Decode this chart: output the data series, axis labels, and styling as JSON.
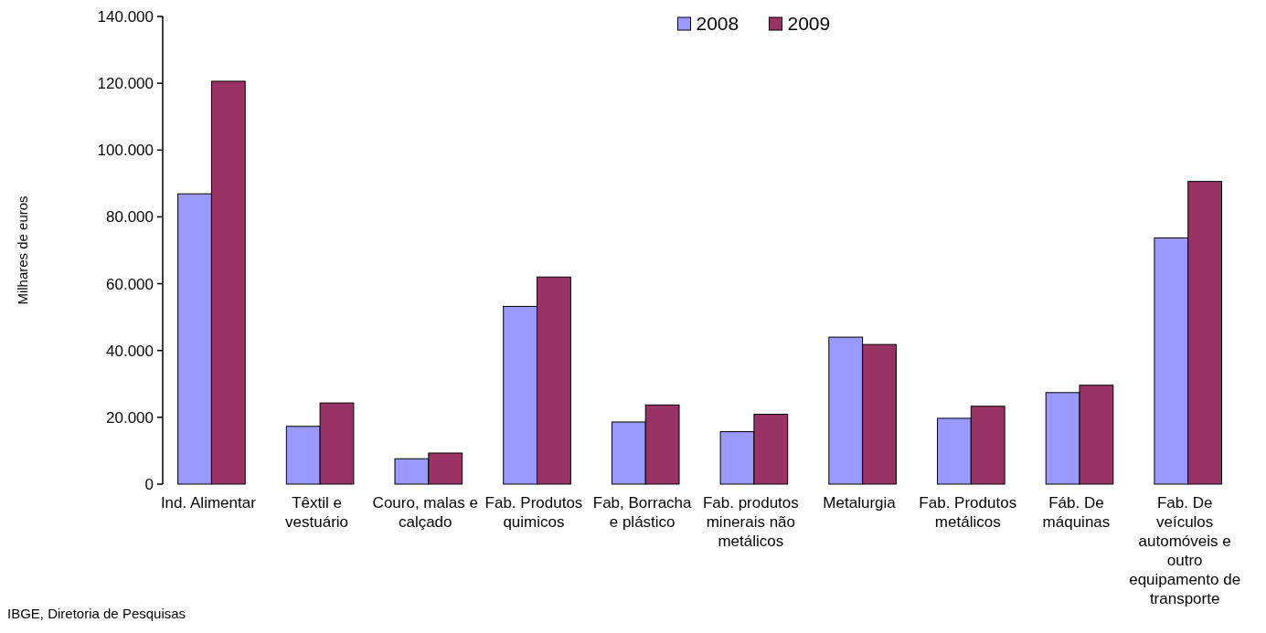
{
  "chart_data": {
    "type": "bar",
    "categories": [
      "Ind. Alimentar",
      "Têxtil e vestuário",
      "Couro, malas e calçado",
      "Fab. Produtos quimicos",
      "Fab, Borracha e plástico",
      "Fab. produtos minerais não metálicos",
      "Metalurgia",
      "Fab. Produtos metálicos",
      "Fáb. De máquinas",
      "Fab. De veículos automóveis e outro equipamento de transporte"
    ],
    "series": [
      {
        "name": "2008",
        "color": "#9999ff",
        "values": [
          86900,
          17300,
          7600,
          53200,
          18600,
          15700,
          44000,
          19700,
          27400,
          73700
        ]
      },
      {
        "name": "2009",
        "color": "#993366",
        "values": [
          120600,
          24300,
          9300,
          62000,
          23700,
          20900,
          41800,
          23300,
          29600,
          90600
        ]
      }
    ],
    "ylabel": "Milhares de euros",
    "ylim": [
      0,
      140000
    ],
    "yticks": [
      {
        "value": 0,
        "label": "0"
      },
      {
        "value": 20000,
        "label": "20.000"
      },
      {
        "value": 40000,
        "label": "40.000"
      },
      {
        "value": 60000,
        "label": "60.000"
      },
      {
        "value": 80000,
        "label": "80.000"
      },
      {
        "value": 100000,
        "label": "100.000"
      },
      {
        "value": 120000,
        "label": "120.000"
      },
      {
        "value": 140000,
        "label": "140.000"
      }
    ],
    "grid": false,
    "legend": "top",
    "annotations": [
      "IBGE, Diretoria de Pesquisas"
    ]
  }
}
